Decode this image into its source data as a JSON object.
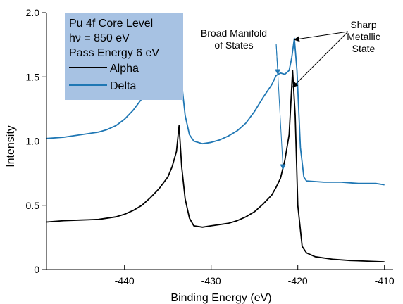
{
  "chart_data": {
    "type": "line",
    "title": "",
    "xlabel": "Binding Energy (eV)",
    "ylabel": "Intensity",
    "xlim": [
      -449,
      -409
    ],
    "ylim": [
      0,
      2.0
    ],
    "x_ticks": [
      -450,
      -440,
      -430,
      -420,
      -410
    ],
    "y_ticks": [
      0,
      0.5,
      1.0,
      1.5,
      2.0
    ],
    "x_tick_labels": [
      "-450",
      "-440",
      "-430",
      "-420",
      "-410"
    ],
    "y_tick_labels": [
      "0",
      "0.5",
      "1.0",
      "1.5",
      "2.0"
    ],
    "grid": false,
    "legend": {
      "placement": "top-left",
      "background": "#a7c2e3",
      "header_lines": [
        "Pu 4f Core Level",
        "hν = 850 eV",
        "Pass Energy 6 eV"
      ],
      "entries": [
        "Alpha",
        "Delta"
      ]
    },
    "series": [
      {
        "name": "Alpha",
        "color": "#000000",
        "points": [
          [
            -449,
            0.37
          ],
          [
            -447,
            0.38
          ],
          [
            -445,
            0.385
          ],
          [
            -443,
            0.39
          ],
          [
            -441,
            0.41
          ],
          [
            -440,
            0.43
          ],
          [
            -439,
            0.46
          ],
          [
            -438,
            0.5
          ],
          [
            -437,
            0.56
          ],
          [
            -436,
            0.63
          ],
          [
            -435,
            0.72
          ],
          [
            -434.5,
            0.8
          ],
          [
            -434.0,
            0.92
          ],
          [
            -433.7,
            1.12
          ],
          [
            -433.4,
            0.8
          ],
          [
            -433.0,
            0.55
          ],
          [
            -432.5,
            0.4
          ],
          [
            -432,
            0.34
          ],
          [
            -431,
            0.33
          ],
          [
            -430,
            0.34
          ],
          [
            -429,
            0.35
          ],
          [
            -428,
            0.36
          ],
          [
            -427,
            0.38
          ],
          [
            -426,
            0.41
          ],
          [
            -425,
            0.45
          ],
          [
            -424,
            0.51
          ],
          [
            -423,
            0.58
          ],
          [
            -422.5,
            0.64
          ],
          [
            -422,
            0.71
          ],
          [
            -421.5,
            0.85
          ],
          [
            -421,
            1.05
          ],
          [
            -420.6,
            1.55
          ],
          [
            -420.3,
            1.2
          ],
          [
            -420.0,
            0.5
          ],
          [
            -419.5,
            0.18
          ],
          [
            -419,
            0.13
          ],
          [
            -418,
            0.1
          ],
          [
            -416,
            0.08
          ],
          [
            -414,
            0.07
          ],
          [
            -412,
            0.065
          ],
          [
            -410,
            0.06
          ]
        ]
      },
      {
        "name": "Delta",
        "color": "#1f77b4",
        "points": [
          [
            -449,
            1.02
          ],
          [
            -447,
            1.03
          ],
          [
            -445,
            1.05
          ],
          [
            -443,
            1.07
          ],
          [
            -442,
            1.09
          ],
          [
            -441,
            1.12
          ],
          [
            -440,
            1.17
          ],
          [
            -439,
            1.24
          ],
          [
            -438,
            1.33
          ],
          [
            -437,
            1.42
          ],
          [
            -436,
            1.5
          ],
          [
            -435,
            1.55
          ],
          [
            -434.2,
            1.58
          ],
          [
            -433.8,
            1.62
          ],
          [
            -433.4,
            1.45
          ],
          [
            -433.0,
            1.2
          ],
          [
            -432.5,
            1.05
          ],
          [
            -432,
            1.0
          ],
          [
            -431,
            0.98
          ],
          [
            -430,
            0.99
          ],
          [
            -429,
            1.01
          ],
          [
            -428,
            1.04
          ],
          [
            -427,
            1.08
          ],
          [
            -426,
            1.14
          ],
          [
            -425,
            1.23
          ],
          [
            -424,
            1.34
          ],
          [
            -423,
            1.44
          ],
          [
            -422.5,
            1.51
          ],
          [
            -422,
            1.53
          ],
          [
            -421.5,
            1.52
          ],
          [
            -421,
            1.55
          ],
          [
            -420.7,
            1.65
          ],
          [
            -420.4,
            1.8
          ],
          [
            -420.1,
            1.55
          ],
          [
            -419.7,
            0.95
          ],
          [
            -419.3,
            0.72
          ],
          [
            -419,
            0.69
          ],
          [
            -417,
            0.68
          ],
          [
            -415,
            0.68
          ],
          [
            -413,
            0.67
          ],
          [
            -411,
            0.67
          ],
          [
            -410,
            0.66
          ]
        ]
      }
    ],
    "annotations": [
      {
        "lines": [
          "Broad Manifold",
          "of States"
        ],
        "arrow_color": "#1f77b4",
        "targets": [
          [
            -422.3,
            1.52
          ],
          [
            -421.7,
            0.78
          ]
        ],
        "anchor": [
          -425.0,
          1.75
        ]
      },
      {
        "lines": [
          "Sharp",
          "Metallic",
          "State"
        ],
        "arrow_color": "#000000",
        "targets": [
          [
            -420.4,
            1.79
          ],
          [
            -420.6,
            1.42
          ]
        ],
        "anchor": [
          -418.2,
          1.79
        ]
      }
    ]
  }
}
